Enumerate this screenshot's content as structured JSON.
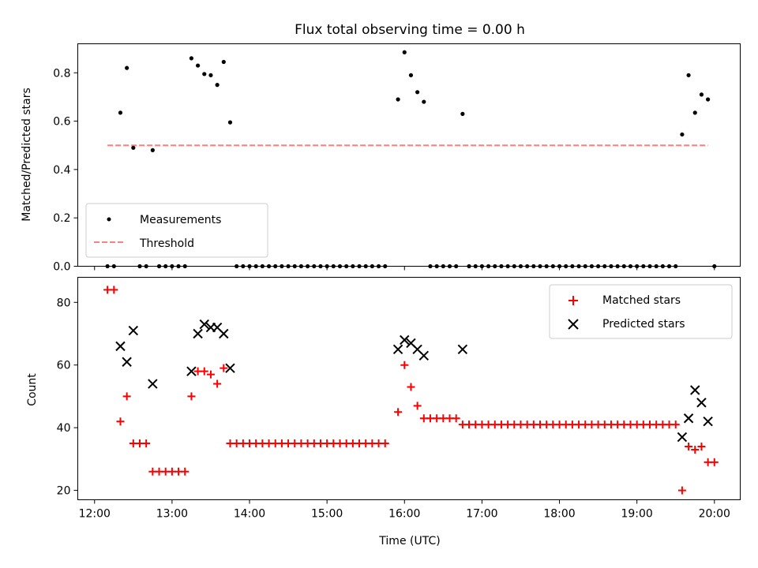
{
  "chart_data": [
    {
      "type": "scatter",
      "title": "Flux total observing time = 0.00 h",
      "ylabel": "Matched/Predicted stars",
      "xlabel": "",
      "ylim": [
        0,
        0.92
      ],
      "yticks": [
        0.0,
        0.2,
        0.4,
        0.6,
        0.8
      ],
      "ytick_labels": [
        "0.0",
        "0.2",
        "0.4",
        "0.6",
        "0.8"
      ],
      "xlim": [
        "11:47",
        "20:20"
      ],
      "xticks": [
        "12:00",
        "13:00",
        "14:00",
        "15:00",
        "16:00",
        "17:00",
        "18:00",
        "19:00",
        "20:00"
      ],
      "xtick_labels_visible": false,
      "legend_position": "lower-left",
      "series": [
        {
          "name": "Measurements",
          "color": "#000000",
          "marker": "dot",
          "points": [
            [
              "12:10",
              0.0
            ],
            [
              "12:15",
              0.0
            ],
            [
              "12:20",
              0.635
            ],
            [
              "12:25",
              0.82
            ],
            [
              "12:30",
              0.49
            ],
            [
              "12:35",
              0.0
            ],
            [
              "12:40",
              0.0
            ],
            [
              "12:45",
              0.48
            ],
            [
              "12:50",
              0.0
            ],
            [
              "12:55",
              0.0
            ],
            [
              "13:00",
              0.0
            ],
            [
              "13:05",
              0.0
            ],
            [
              "13:10",
              0.0
            ],
            [
              "13:15",
              0.86
            ],
            [
              "13:20",
              0.83
            ],
            [
              "13:25",
              0.795
            ],
            [
              "13:30",
              0.79
            ],
            [
              "13:35",
              0.75
            ],
            [
              "13:40",
              0.845
            ],
            [
              "13:45",
              0.595
            ],
            [
              "13:50",
              0.0
            ],
            [
              "13:55",
              0.0
            ],
            [
              "14:00",
              0.0
            ],
            [
              "14:05",
              0.0
            ],
            [
              "14:10",
              0.0
            ],
            [
              "14:15",
              0.0
            ],
            [
              "14:20",
              0.0
            ],
            [
              "14:25",
              0.0
            ],
            [
              "14:30",
              0.0
            ],
            [
              "14:35",
              0.0
            ],
            [
              "14:40",
              0.0
            ],
            [
              "14:45",
              0.0
            ],
            [
              "14:50",
              0.0
            ],
            [
              "14:55",
              0.0
            ],
            [
              "15:00",
              0.0
            ],
            [
              "15:05",
              0.0
            ],
            [
              "15:10",
              0.0
            ],
            [
              "15:15",
              0.0
            ],
            [
              "15:20",
              0.0
            ],
            [
              "15:25",
              0.0
            ],
            [
              "15:30",
              0.0
            ],
            [
              "15:35",
              0.0
            ],
            [
              "15:40",
              0.0
            ],
            [
              "15:45",
              0.0
            ],
            [
              "15:55",
              0.69
            ],
            [
              "16:00",
              0.885
            ],
            [
              "16:05",
              0.79
            ],
            [
              "16:10",
              0.72
            ],
            [
              "16:15",
              0.68
            ],
            [
              "16:20",
              0.0
            ],
            [
              "16:25",
              0.0
            ],
            [
              "16:30",
              0.0
            ],
            [
              "16:35",
              0.0
            ],
            [
              "16:40",
              0.0
            ],
            [
              "16:45",
              0.63
            ],
            [
              "16:50",
              0.0
            ],
            [
              "16:55",
              0.0
            ],
            [
              "17:00",
              0.0
            ],
            [
              "17:05",
              0.0
            ],
            [
              "17:10",
              0.0
            ],
            [
              "17:15",
              0.0
            ],
            [
              "17:20",
              0.0
            ],
            [
              "17:25",
              0.0
            ],
            [
              "17:30",
              0.0
            ],
            [
              "17:35",
              0.0
            ],
            [
              "17:40",
              0.0
            ],
            [
              "17:45",
              0.0
            ],
            [
              "17:50",
              0.0
            ],
            [
              "17:55",
              0.0
            ],
            [
              "18:00",
              0.0
            ],
            [
              "18:05",
              0.0
            ],
            [
              "18:10",
              0.0
            ],
            [
              "18:15",
              0.0
            ],
            [
              "18:20",
              0.0
            ],
            [
              "18:25",
              0.0
            ],
            [
              "18:30",
              0.0
            ],
            [
              "18:35",
              0.0
            ],
            [
              "18:40",
              0.0
            ],
            [
              "18:45",
              0.0
            ],
            [
              "18:50",
              0.0
            ],
            [
              "18:55",
              0.0
            ],
            [
              "19:00",
              0.0
            ],
            [
              "19:05",
              0.0
            ],
            [
              "19:10",
              0.0
            ],
            [
              "19:15",
              0.0
            ],
            [
              "19:20",
              0.0
            ],
            [
              "19:25",
              0.0
            ],
            [
              "19:30",
              0.0
            ],
            [
              "19:35",
              0.545
            ],
            [
              "19:40",
              0.79
            ],
            [
              "19:45",
              0.635
            ],
            [
              "19:50",
              0.71
            ],
            [
              "19:55",
              0.69
            ],
            [
              "20:00",
              0.0
            ]
          ]
        },
        {
          "name": "Threshold",
          "color": "#ff7f7f",
          "line_style": "dashed",
          "points": [
            [
              "12:10",
              0.5
            ],
            [
              "19:55",
              0.5
            ]
          ]
        }
      ]
    },
    {
      "type": "scatter",
      "title": "",
      "ylabel": "Count",
      "xlabel": "Time (UTC)",
      "ylim": [
        17,
        88
      ],
      "yticks": [
        20,
        40,
        60,
        80
      ],
      "ytick_labels": [
        "20",
        "40",
        "60",
        "80"
      ],
      "xlim": [
        "11:47",
        "20:20"
      ],
      "xticks": [
        "12:00",
        "13:00",
        "14:00",
        "15:00",
        "16:00",
        "17:00",
        "18:00",
        "19:00",
        "20:00"
      ],
      "xtick_labels": [
        "12:00",
        "13:00",
        "14:00",
        "15:00",
        "16:00",
        "17:00",
        "18:00",
        "19:00",
        "20:00"
      ],
      "legend_position": "upper-right",
      "series": [
        {
          "name": "Matched stars",
          "color": "#ff0000",
          "marker": "plus",
          "points": [
            [
              "12:10",
              84
            ],
            [
              "12:15",
              84
            ],
            [
              "12:20",
              42
            ],
            [
              "12:25",
              50
            ],
            [
              "12:30",
              35
            ],
            [
              "12:35",
              35
            ],
            [
              "12:40",
              35
            ],
            [
              "12:45",
              26
            ],
            [
              "12:50",
              26
            ],
            [
              "12:55",
              26
            ],
            [
              "13:00",
              26
            ],
            [
              "13:05",
              26
            ],
            [
              "13:10",
              26
            ],
            [
              "13:15",
              50
            ],
            [
              "13:20",
              58
            ],
            [
              "13:25",
              58
            ],
            [
              "13:30",
              57
            ],
            [
              "13:35",
              54
            ],
            [
              "13:40",
              59
            ],
            [
              "13:45",
              35
            ],
            [
              "13:50",
              35
            ],
            [
              "13:55",
              35
            ],
            [
              "14:00",
              35
            ],
            [
              "14:05",
              35
            ],
            [
              "14:10",
              35
            ],
            [
              "14:15",
              35
            ],
            [
              "14:20",
              35
            ],
            [
              "14:25",
              35
            ],
            [
              "14:30",
              35
            ],
            [
              "14:35",
              35
            ],
            [
              "14:40",
              35
            ],
            [
              "14:45",
              35
            ],
            [
              "14:50",
              35
            ],
            [
              "14:55",
              35
            ],
            [
              "15:00",
              35
            ],
            [
              "15:05",
              35
            ],
            [
              "15:10",
              35
            ],
            [
              "15:15",
              35
            ],
            [
              "15:20",
              35
            ],
            [
              "15:25",
              35
            ],
            [
              "15:30",
              35
            ],
            [
              "15:35",
              35
            ],
            [
              "15:40",
              35
            ],
            [
              "15:45",
              35
            ],
            [
              "15:55",
              45
            ],
            [
              "16:00",
              60
            ],
            [
              "16:05",
              53
            ],
            [
              "16:10",
              47
            ],
            [
              "16:15",
              43
            ],
            [
              "16:20",
              43
            ],
            [
              "16:25",
              43
            ],
            [
              "16:30",
              43
            ],
            [
              "16:35",
              43
            ],
            [
              "16:40",
              43
            ],
            [
              "16:45",
              41
            ],
            [
              "16:50",
              41
            ],
            [
              "16:55",
              41
            ],
            [
              "17:00",
              41
            ],
            [
              "17:05",
              41
            ],
            [
              "17:10",
              41
            ],
            [
              "17:15",
              41
            ],
            [
              "17:20",
              41
            ],
            [
              "17:25",
              41
            ],
            [
              "17:30",
              41
            ],
            [
              "17:35",
              41
            ],
            [
              "17:40",
              41
            ],
            [
              "17:45",
              41
            ],
            [
              "17:50",
              41
            ],
            [
              "17:55",
              41
            ],
            [
              "18:00",
              41
            ],
            [
              "18:05",
              41
            ],
            [
              "18:10",
              41
            ],
            [
              "18:15",
              41
            ],
            [
              "18:20",
              41
            ],
            [
              "18:25",
              41
            ],
            [
              "18:30",
              41
            ],
            [
              "18:35",
              41
            ],
            [
              "18:40",
              41
            ],
            [
              "18:45",
              41
            ],
            [
              "18:50",
              41
            ],
            [
              "18:55",
              41
            ],
            [
              "19:00",
              41
            ],
            [
              "19:05",
              41
            ],
            [
              "19:10",
              41
            ],
            [
              "19:15",
              41
            ],
            [
              "19:20",
              41
            ],
            [
              "19:25",
              41
            ],
            [
              "19:30",
              41
            ],
            [
              "19:35",
              20
            ],
            [
              "19:40",
              34
            ],
            [
              "19:45",
              33
            ],
            [
              "19:50",
              34
            ],
            [
              "19:55",
              29
            ],
            [
              "20:00",
              29
            ]
          ]
        },
        {
          "name": "Predicted stars",
          "color": "#000000",
          "marker": "x",
          "points": [
            [
              "12:20",
              66
            ],
            [
              "12:25",
              61
            ],
            [
              "12:30",
              71
            ],
            [
              "12:45",
              54
            ],
            [
              "13:15",
              58
            ],
            [
              "13:20",
              70
            ],
            [
              "13:25",
              73
            ],
            [
              "13:30",
              72
            ],
            [
              "13:35",
              72
            ],
            [
              "13:40",
              70
            ],
            [
              "13:45",
              59
            ],
            [
              "15:55",
              65
            ],
            [
              "16:00",
              68
            ],
            [
              "16:05",
              67
            ],
            [
              "16:10",
              65
            ],
            [
              "16:15",
              63
            ],
            [
              "16:45",
              65
            ],
            [
              "19:35",
              37
            ],
            [
              "19:40",
              43
            ],
            [
              "19:45",
              52
            ],
            [
              "19:50",
              48
            ],
            [
              "19:55",
              42
            ]
          ]
        }
      ]
    }
  ]
}
